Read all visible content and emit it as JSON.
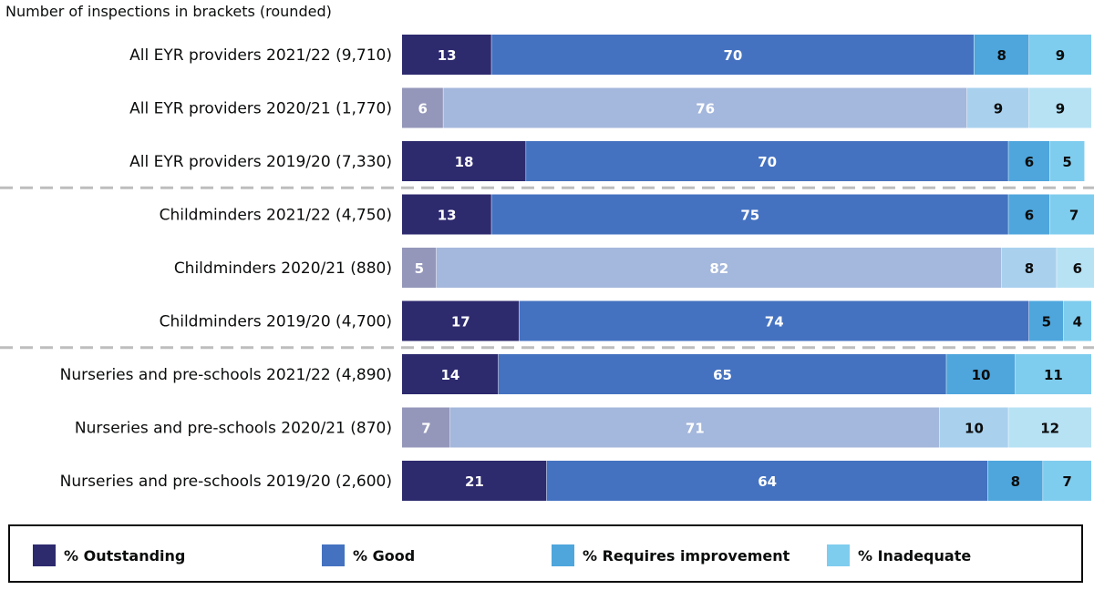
{
  "chart_data": {
    "type": "bar",
    "orientation": "horizontal",
    "stacked": true,
    "subtitle": "Number of inspections in brackets (rounded)",
    "categories": [
      "All EYR providers 2021/22 (9,710)",
      "All EYR providers 2020/21 (1,770)",
      "All EYR providers 2019/20 (7,330)",
      "Childminders 2021/22 (4,750)",
      "Childminders 2020/21 (880)",
      "Childminders 2019/20 (4,700)",
      "Nurseries and pre-schools 2021/22 (4,890)",
      "Nurseries and pre-schools 2020/21 (870)",
      "Nurseries and pre-schools 2019/20 (2,600)"
    ],
    "series": [
      {
        "name": "% Outstanding",
        "color": "#2d2a6e",
        "values": [
          13,
          6,
          18,
          13,
          5,
          17,
          14,
          7,
          21
        ]
      },
      {
        "name": "% Good",
        "color": "#4472c0",
        "values": [
          70,
          76,
          70,
          75,
          82,
          74,
          65,
          71,
          64
        ]
      },
      {
        "name": "% Requires improvement",
        "color": "#4ea6dc",
        "values": [
          8,
          9,
          6,
          6,
          8,
          5,
          10,
          10,
          8
        ]
      },
      {
        "name": "% Inadequate",
        "color": "#7fcdee",
        "values": [
          9,
          9,
          5,
          7,
          6,
          4,
          11,
          12,
          7
        ]
      }
    ],
    "muted_rows": [
      1,
      4,
      7
    ],
    "muted_colors": [
      "#9497ba",
      "#a4b7dc",
      "#a9d1ee",
      "#b7e2f4"
    ],
    "group_separators_after": [
      2,
      5
    ],
    "xlim": [
      0,
      100
    ],
    "legend_position": "bottom"
  }
}
